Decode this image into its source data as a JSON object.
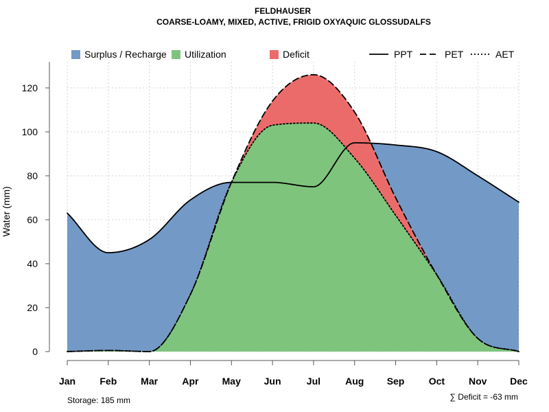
{
  "chart_data": {
    "type": "area",
    "title": "FELDHAUSER",
    "subtitle": "COARSE-LOAMY, MIXED, ACTIVE, FRIGID OXYAQUIC GLOSSUDALFS",
    "xlabel": "",
    "ylabel": "Water (mm)",
    "ylim": [
      0,
      130
    ],
    "yticks": [
      0,
      20,
      40,
      60,
      80,
      100,
      120
    ],
    "grid": true,
    "legend_position": "top",
    "categories": [
      "Jan",
      "Feb",
      "Mar",
      "Apr",
      "May",
      "Jun",
      "Jul",
      "Aug",
      "Sep",
      "Oct",
      "Nov",
      "Dec"
    ],
    "series": [
      {
        "name": "PPT",
        "style": "solid",
        "values": [
          63,
          45,
          51,
          69,
          77,
          77,
          75,
          95,
          94,
          91,
          80,
          68
        ]
      },
      {
        "name": "PET",
        "style": "dashed",
        "values": [
          0,
          0.5,
          0,
          26,
          77,
          114,
          126,
          109,
          70,
          35,
          6,
          0
        ]
      },
      {
        "name": "AET",
        "style": "dotted",
        "values": [
          0,
          0.5,
          0,
          26,
          77,
          103,
          104,
          88,
          62,
          35,
          6,
          0
        ]
      }
    ],
    "fill_legend": [
      {
        "name": "Surplus / Recharge",
        "color": "#7399C6"
      },
      {
        "name": "Utilization",
        "color": "#7FC47C"
      },
      {
        "name": "Deficit",
        "color": "#EB6B6B"
      }
    ],
    "annotations": {
      "storage": "Storage: 185 mm",
      "deficit": "∑ Deficit = -63 mm"
    }
  }
}
